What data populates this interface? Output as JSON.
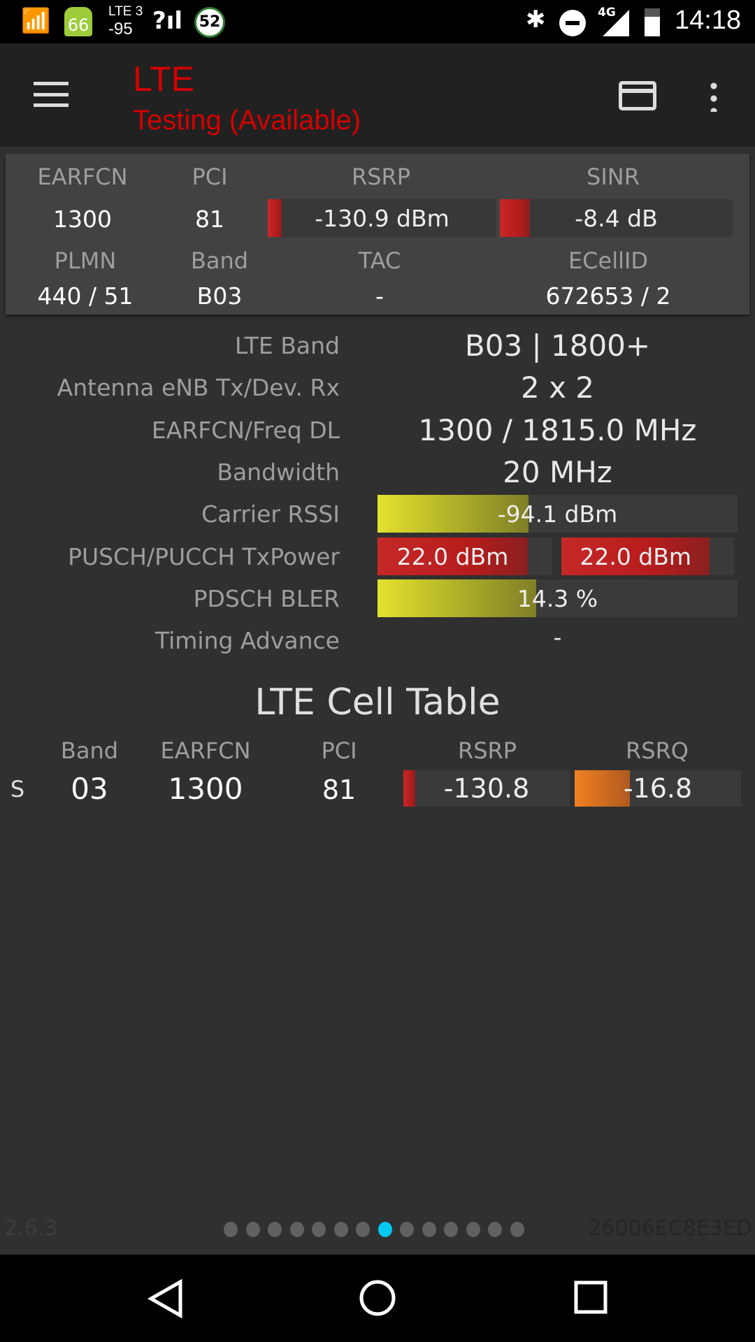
{
  "status_bar": {
    "icons": [
      "cell-tower-icon",
      "android-battery-icon",
      "signal-unknown-icon",
      "circle-badge-icon",
      "bluetooth-icon",
      "do-not-disturb-icon",
      "signal-4g-icon",
      "battery-icon"
    ],
    "android_badge": "66",
    "lte_label": "LTE 3",
    "lte_value": "-95",
    "signal_badge": "52",
    "network": "4G",
    "time": "14:18"
  },
  "appbar": {
    "title": "LTE",
    "subtitle": "Testing (Available)",
    "accent": "#d50000"
  },
  "summary": {
    "headers1": [
      "EARFCN",
      "PCI",
      "RSRP",
      "SINR"
    ],
    "values1": {
      "earfcn": "1300",
      "pci": "81",
      "rsrp": "-130.9 dBm",
      "sinr": "-8.4 dB"
    },
    "rsrp_level": 0.06,
    "sinr_level": 0.13,
    "headers2": [
      "PLMN",
      "Band",
      "TAC",
      "ECellID"
    ],
    "values2": [
      "440 / 51",
      "B03",
      "-",
      "672653 / 2"
    ]
  },
  "details": [
    {
      "label": "LTE Band",
      "value": "B03 | 1800+"
    },
    {
      "label": "Antenna eNB Tx/Dev. Rx",
      "value": "2 x 2"
    },
    {
      "label": "EARFCN/Freq DL",
      "value": "1300 / 1815.0 MHz"
    },
    {
      "label": "Bandwidth",
      "value": "20 MHz"
    },
    {
      "label": "Carrier RSSI",
      "value": "-94.1 dBm",
      "level": 0.42
    },
    {
      "label": "PUSCH/PUCCH TxPower",
      "value": "22.0 dBm",
      "value2": "22.0 dBm",
      "level": 0.86,
      "level2": 0.86
    },
    {
      "label": "PDSCH BLER",
      "value": "14.3 %",
      "level": 0.44
    },
    {
      "label": "Timing Advance",
      "value": "-"
    }
  ],
  "cell_table": {
    "title": "LTE Cell Table",
    "headers": [
      "Band",
      "EARFCN",
      "PCI",
      "RSRP",
      "RSRQ"
    ],
    "rows": [
      {
        "type": "S",
        "band": "03",
        "earfcn": "1300",
        "pci": "81",
        "rsrp": "-130.8",
        "rsrq": "-16.8",
        "rsrp_level": 0.07,
        "rsrq_level": 0.33
      }
    ]
  },
  "footer": {
    "version": "2.6.3",
    "id": "26006EC8E3ED",
    "pages": 14,
    "active_page": 8,
    "active_color": "#00c8f0"
  },
  "nav": {
    "back": "back-icon",
    "home": "home-icon",
    "recents": "recents-icon"
  }
}
